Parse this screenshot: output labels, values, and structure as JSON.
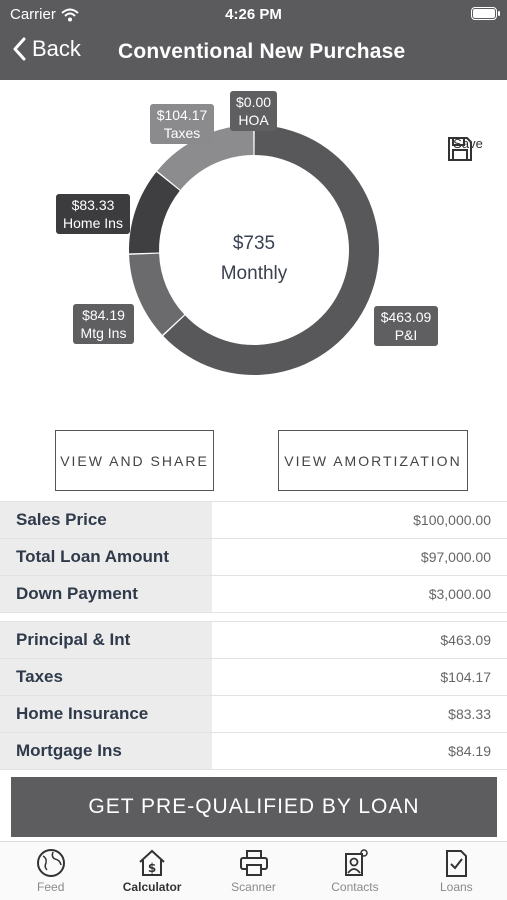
{
  "status": {
    "carrier": "Carrier",
    "time": "4:26 PM"
  },
  "nav": {
    "back_label": "Back",
    "title": "Conventional New Purchase"
  },
  "chart_data": {
    "type": "pie",
    "center_amount": "$735",
    "center_label": "Monthly",
    "slices": [
      {
        "label": "P&I",
        "amount": "$463.09",
        "value": 463.09,
        "color": "#58585b"
      },
      {
        "label": "Mtg Ins",
        "amount": "$84.19",
        "value": 84.19,
        "color": "#6b6b6e"
      },
      {
        "label": "Home Ins",
        "amount": "$83.33",
        "value": 83.33,
        "color": "#3f3f42"
      },
      {
        "label": "Taxes",
        "amount": "$104.17",
        "value": 104.17,
        "color": "#8c8c8e"
      },
      {
        "label": "HOA",
        "amount": "$0.00",
        "value": 0.0,
        "color": "#5f5f62"
      }
    ]
  },
  "save": {
    "label": "Save"
  },
  "buttons": {
    "view_share": "VIEW AND SHARE",
    "view_amortization": "VIEW AMORTIZATION"
  },
  "loan_rows": [
    {
      "label": "Sales Price",
      "value": "$100,000.00"
    },
    {
      "label": "Total Loan Amount",
      "value": "$97,000.00"
    },
    {
      "label": "Down Payment",
      "value": "$3,000.00"
    }
  ],
  "payment_rows": [
    {
      "label": "Principal & Int",
      "value": "$463.09"
    },
    {
      "label": "Taxes",
      "value": "$104.17"
    },
    {
      "label": "Home Insurance",
      "value": "$83.33"
    },
    {
      "label": "Mortgage Ins",
      "value": "$84.19"
    }
  ],
  "cta": {
    "label": "GET PRE-QUALIFIED BY LOAN"
  },
  "tabs": [
    {
      "label": "Feed",
      "icon": "globe-icon"
    },
    {
      "label": "Calculator",
      "icon": "house-dollar-icon"
    },
    {
      "label": "Scanner",
      "icon": "printer-icon"
    },
    {
      "label": "Contacts",
      "icon": "contacts-icon"
    },
    {
      "label": "Loans",
      "icon": "document-check-icon"
    }
  ]
}
